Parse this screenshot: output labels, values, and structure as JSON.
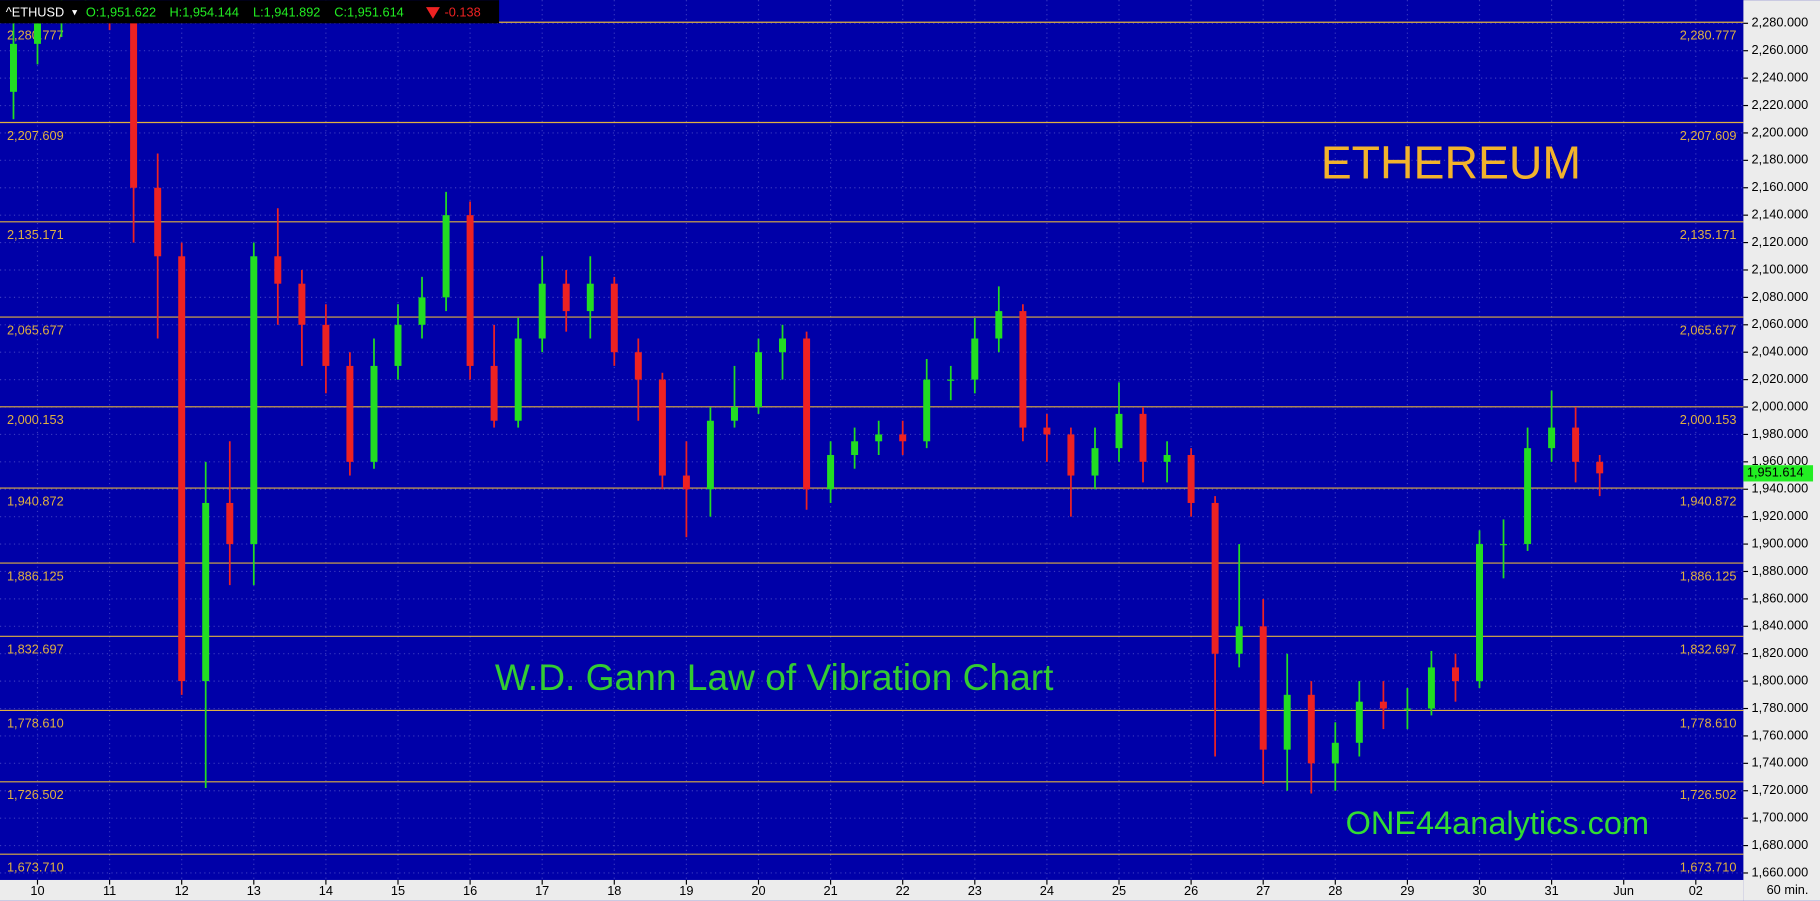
{
  "chart_data": {
    "type": "candlestick",
    "title": "ETHEREUM",
    "subtitle": "W.D. Gann Law of Vibration Chart",
    "annotation": "ONE44analytics.com",
    "interval": "60 min.",
    "header": {
      "symbol": "^ETHUSD",
      "open": "O:1,951.622",
      "high": "H:1,954.144",
      "low": "L:1,941.892",
      "close": "C:1,951.614",
      "change": "-0.138"
    },
    "last_price": {
      "value": 1951.614,
      "label": "1,951.614"
    },
    "up_color": "#22dd22",
    "down_color": "#ee2222",
    "gann_color": "#e0b040",
    "background": "#0000a8",
    "x": [
      -0.333,
      0,
      0.333,
      0.667,
      1,
      1.333,
      1.667,
      2,
      2.333,
      2.667,
      3,
      3.333,
      3.667,
      4,
      4.333,
      4.667,
      5,
      5.333,
      5.667,
      6,
      6.333,
      6.667,
      7,
      7.333,
      7.667,
      8,
      8.333,
      8.667,
      9,
      9.333,
      9.667,
      10,
      10.333,
      10.667,
      11,
      11.333,
      11.667,
      12,
      12.333,
      12.667,
      13,
      13.333,
      13.667,
      14,
      14.333,
      14.667,
      15,
      15.333,
      15.667,
      16,
      16.333,
      16.667,
      17,
      17.333,
      17.667,
      18,
      18.333,
      18.667,
      19,
      19.333,
      19.667,
      20,
      20.333,
      20.667,
      21,
      21.333,
      21.667
    ],
    "open": [
      2230,
      2265,
      2280,
      2290,
      2295,
      2290,
      2160,
      2110,
      1800,
      1930,
      1900,
      2110,
      2090,
      2060,
      2030,
      1960,
      2030,
      2060,
      2080,
      2140,
      2030,
      1990,
      2050,
      2090,
      2070,
      2090,
      2040,
      2020,
      1950,
      1940,
      1990,
      2000,
      2040,
      2050,
      1940,
      1965,
      1975,
      1980,
      1975,
      2020,
      2020,
      2050,
      2070,
      1985,
      1980,
      1950,
      1970,
      1995,
      1960,
      1965,
      1930,
      1820,
      1840,
      1750,
      1790,
      1740,
      1755,
      1785,
      1780,
      1780,
      1810,
      1800,
      1900,
      1900,
      1970,
      1985,
      1960
    ],
    "high": [
      2290,
      2296,
      2300,
      2305,
      2310,
      2300,
      2185,
      2120,
      1960,
      1975,
      2120,
      2145,
      2100,
      2075,
      2040,
      2050,
      2075,
      2095,
      2157,
      2150,
      2060,
      2065,
      2110,
      2100,
      2110,
      2095,
      2050,
      2025,
      1975,
      2000,
      2030,
      2050,
      2060,
      2055,
      1975,
      1985,
      1990,
      1990,
      2035,
      2030,
      2065,
      2088,
      2075,
      1995,
      1985,
      1985,
      2018,
      2000,
      1975,
      1970,
      1935,
      1900,
      1860,
      1820,
      1800,
      1770,
      1800,
      1800,
      1795,
      1822,
      1820,
      1910,
      1918,
      1985,
      2012,
      2000,
      1965
    ],
    "low": [
      2210,
      2250,
      2270,
      2280,
      2275,
      2120,
      2050,
      1790,
      1722,
      1870,
      1870,
      2060,
      2030,
      2010,
      1950,
      1955,
      2020,
      2050,
      2070,
      2020,
      1985,
      1985,
      2040,
      2055,
      2050,
      2030,
      1990,
      1940,
      1905,
      1920,
      1985,
      1995,
      2020,
      1925,
      1930,
      1955,
      1965,
      1965,
      1970,
      2005,
      2010,
      2040,
      1975,
      1960,
      1920,
      1940,
      1960,
      1945,
      1945,
      1920,
      1745,
      1810,
      1725,
      1720,
      1718,
      1720,
      1745,
      1765,
      1765,
      1775,
      1785,
      1795,
      1875,
      1895,
      1960,
      1945,
      1935
    ],
    "close": [
      2265,
      2280,
      2290,
      2295,
      2290,
      2160,
      2110,
      1800,
      1930,
      1900,
      2110,
      2090,
      2060,
      2030,
      1960,
      2030,
      2060,
      2080,
      2140,
      2030,
      1990,
      2050,
      2090,
      2070,
      2090,
      2040,
      2020,
      1950,
      1940,
      1990,
      2000,
      2040,
      2050,
      1940,
      1965,
      1975,
      1980,
      1975,
      2020,
      2020,
      2050,
      2070,
      1985,
      1980,
      1950,
      1970,
      1995,
      1960,
      1965,
      1930,
      1820,
      1840,
      1750,
      1790,
      1740,
      1755,
      1785,
      1780,
      1780,
      1810,
      1800,
      1900,
      1900,
      1970,
      1985,
      1960,
      1951.614
    ],
    "gann_levels": [
      {
        "value": 2280.777,
        "label": "2,280.777"
      },
      {
        "value": 2207.609,
        "label": "2,207.609"
      },
      {
        "value": 2135.171,
        "label": "2,135.171"
      },
      {
        "value": 2065.677,
        "label": "2,065.677"
      },
      {
        "value": 2000.153,
        "label": "2,000.153"
      },
      {
        "value": 1940.872,
        "label": "1,940.872"
      },
      {
        "value": 1886.125,
        "label": "1,886.125"
      },
      {
        "value": 1832.697,
        "label": "1,832.697"
      },
      {
        "value": 1778.61,
        "label": "1,778.610"
      },
      {
        "value": 1726.502,
        "label": "1,726.502"
      },
      {
        "value": 1673.71,
        "label": "1,673.710"
      }
    ],
    "xlim": [
      -0.52,
      23.66
    ],
    "xticks": [
      {
        "value": 0,
        "label": "10"
      },
      {
        "value": 1,
        "label": "11"
      },
      {
        "value": 2,
        "label": "12"
      },
      {
        "value": 3,
        "label": "13"
      },
      {
        "value": 4,
        "label": "14"
      },
      {
        "value": 5,
        "label": "15"
      },
      {
        "value": 6,
        "label": "16"
      },
      {
        "value": 7,
        "label": "17"
      },
      {
        "value": 8,
        "label": "18"
      },
      {
        "value": 9,
        "label": "19"
      },
      {
        "value": 10,
        "label": "20"
      },
      {
        "value": 11,
        "label": "21"
      },
      {
        "value": 12,
        "label": "22"
      },
      {
        "value": 13,
        "label": "23"
      },
      {
        "value": 14,
        "label": "24"
      },
      {
        "value": 15,
        "label": "25"
      },
      {
        "value": 16,
        "label": "26"
      },
      {
        "value": 17,
        "label": "27"
      },
      {
        "value": 18,
        "label": "28"
      },
      {
        "value": 19,
        "label": "29"
      },
      {
        "value": 20,
        "label": "30"
      },
      {
        "value": 21,
        "label": "31"
      },
      {
        "value": 22,
        "label": "Jun"
      },
      {
        "value": 23,
        "label": "02"
      }
    ],
    "ylim": [
      1654.9,
      2296.9
    ],
    "yticks": [
      {
        "value": 1660,
        "label": "1,660.000"
      },
      {
        "value": 1680,
        "label": "1,680.000"
      },
      {
        "value": 1700,
        "label": "1,700.000"
      },
      {
        "value": 1720,
        "label": "1,720.000"
      },
      {
        "value": 1740,
        "label": "1,740.000"
      },
      {
        "value": 1760,
        "label": "1,760.000"
      },
      {
        "value": 1780,
        "label": "1,780.000"
      },
      {
        "value": 1800,
        "label": "1,800.000"
      },
      {
        "value": 1820,
        "label": "1,820.000"
      },
      {
        "value": 1840,
        "label": "1,840.000"
      },
      {
        "value": 1860,
        "label": "1,860.000"
      },
      {
        "value": 1880,
        "label": "1,880.000"
      },
      {
        "value": 1900,
        "label": "1,900.000"
      },
      {
        "value": 1920,
        "label": "1,920.000"
      },
      {
        "value": 1940,
        "label": "1,940.000"
      },
      {
        "value": 1960,
        "label": "1,960.000"
      },
      {
        "value": 1980,
        "label": "1,980.000"
      },
      {
        "value": 2000,
        "label": "2,000.000"
      },
      {
        "value": 2020,
        "label": "2,020.000"
      },
      {
        "value": 2040,
        "label": "2,040.000"
      },
      {
        "value": 2060,
        "label": "2,060.000"
      },
      {
        "value": 2080,
        "label": "2,080.000"
      },
      {
        "value": 2100,
        "label": "2,100.000"
      },
      {
        "value": 2120,
        "label": "2,120.000"
      },
      {
        "value": 2140,
        "label": "2,140.000"
      },
      {
        "value": 2160,
        "label": "2,160.000"
      },
      {
        "value": 2180,
        "label": "2,180.000"
      },
      {
        "value": 2200,
        "label": "2,200.000"
      },
      {
        "value": 2220,
        "label": "2,220.000"
      },
      {
        "value": 2240,
        "label": "2,240.000"
      },
      {
        "value": 2260,
        "label": "2,260.000"
      },
      {
        "value": 2280,
        "label": "2,280.000"
      }
    ],
    "grid": true
  }
}
